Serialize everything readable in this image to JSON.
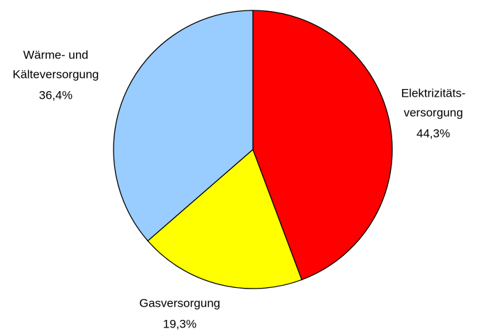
{
  "chart_data": {
    "type": "pie",
    "categories": [
      [
        "Elektrizitäts-",
        "versorgung"
      ],
      [
        "Gasversorgung"
      ],
      [
        "Wärme- und",
        "Kälteversorgung"
      ]
    ],
    "values": [
      44.3,
      19.3,
      36.4
    ],
    "value_labels": [
      "44,3%",
      "19,3%",
      "36,4%"
    ],
    "colors": [
      "#ff0000",
      "#ffff00",
      "#99ccff"
    ]
  }
}
